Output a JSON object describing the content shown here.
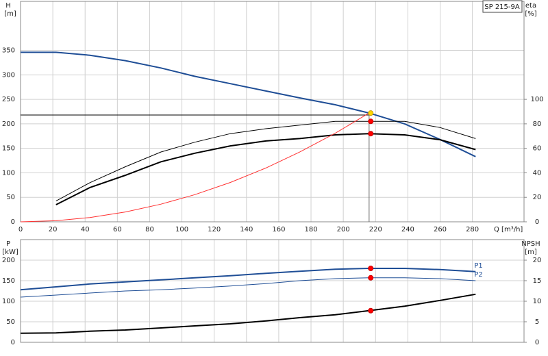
{
  "chart_data": [
    {
      "type": "line",
      "y_label": "H",
      "y_unit": "[m]",
      "y2_label": "eta",
      "y2_unit": "[%]",
      "x_label": "Q [m³/h]",
      "legend": "SP 215-9A",
      "x": [
        0,
        22,
        43,
        65,
        87,
        108,
        130,
        152,
        173,
        195,
        216,
        238,
        260,
        282
      ],
      "xlim": [
        0,
        312
      ],
      "xticks": [
        0,
        20,
        40,
        60,
        80,
        100,
        120,
        140,
        160,
        180,
        200,
        220,
        240,
        260,
        280
      ],
      "ylim": [
        0,
        450
      ],
      "yticks": [
        0,
        50,
        100,
        150,
        200,
        250,
        300,
        350
      ],
      "y2lim": [
        0,
        180
      ],
      "y2ticks": [
        0,
        20,
        40,
        60,
        80,
        100
      ],
      "grid": true,
      "series": [
        {
          "color": "#1f4e96",
          "width": 2,
          "values": [
            346,
            346,
            340,
            329,
            314,
            297,
            282,
            267,
            253,
            239,
            222,
            200,
            168,
            133
          ]
        },
        {
          "color": "#000000",
          "width": 1,
          "axis": "y2",
          "values": [
            null,
            17,
            32,
            45,
            57,
            65,
            72,
            76,
            79,
            82,
            82,
            82,
            77,
            68
          ]
        },
        {
          "color": "#000000",
          "width": 2,
          "axis": "y2",
          "values": [
            null,
            14,
            28,
            38,
            49,
            56,
            62,
            66,
            68,
            71,
            72,
            71,
            67,
            59
          ]
        },
        {
          "color": "#ff3030",
          "width": 1,
          "values": [
            0,
            2.3,
            8.8,
            20.1,
            36,
            55.5,
            80.4,
            109.9,
            142.4,
            180.9,
            222,
            null,
            null,
            null
          ]
        }
      ],
      "ref_lines": {
        "q": 216,
        "h": 218
      },
      "markers": [
        {
          "x": 217,
          "y": 222,
          "color": "#ffd700"
        },
        {
          "x": 217,
          "y": 82,
          "axis": "y2",
          "color": "#ff0000"
        },
        {
          "x": 217,
          "y": 72,
          "axis": "y2",
          "color": "#ff0000"
        }
      ]
    },
    {
      "type": "line",
      "y_label": "P",
      "y_unit": "[kW]",
      "y2_label": "NPSH",
      "y2_unit": "[m]",
      "x": [
        0,
        22,
        43,
        65,
        87,
        108,
        130,
        152,
        173,
        195,
        216,
        238,
        260,
        282
      ],
      "xlim": [
        0,
        312
      ],
      "xticks": [
        0,
        20,
        40,
        60,
        80,
        100,
        120,
        140,
        160,
        180,
        200,
        220,
        240,
        260,
        280
      ],
      "ylim": [
        0,
        250
      ],
      "yticks": [
        0,
        50,
        100,
        150,
        200
      ],
      "y2lim": [
        0,
        25
      ],
      "y2ticks": [
        0,
        5,
        10,
        15,
        20
      ],
      "grid": true,
      "series": [
        {
          "name": "P1",
          "color": "#1f4e96",
          "width": 2,
          "values": [
            128,
            135,
            142,
            147,
            152,
            157,
            162,
            168,
            173,
            178,
            180,
            180,
            177,
            172
          ]
        },
        {
          "name": "P2",
          "color": "#1f4e96",
          "width": 1,
          "values": [
            110,
            115,
            120,
            125,
            128,
            132,
            137,
            143,
            150,
            155,
            157,
            157,
            155,
            150
          ]
        },
        {
          "color": "#000000",
          "width": 2,
          "axis": "y2",
          "values": [
            2.2,
            2.3,
            2.7,
            3.0,
            3.5,
            4.0,
            4.5,
            5.2,
            6.0,
            6.7,
            7.7,
            8.8,
            10.2,
            11.7
          ]
        }
      ],
      "markers": [
        {
          "x": 217,
          "y": 180,
          "color": "#ff0000"
        },
        {
          "x": 217,
          "y": 157,
          "color": "#ff0000"
        },
        {
          "x": 217,
          "y": 7.7,
          "axis": "y2",
          "color": "#ff0000"
        }
      ]
    }
  ]
}
